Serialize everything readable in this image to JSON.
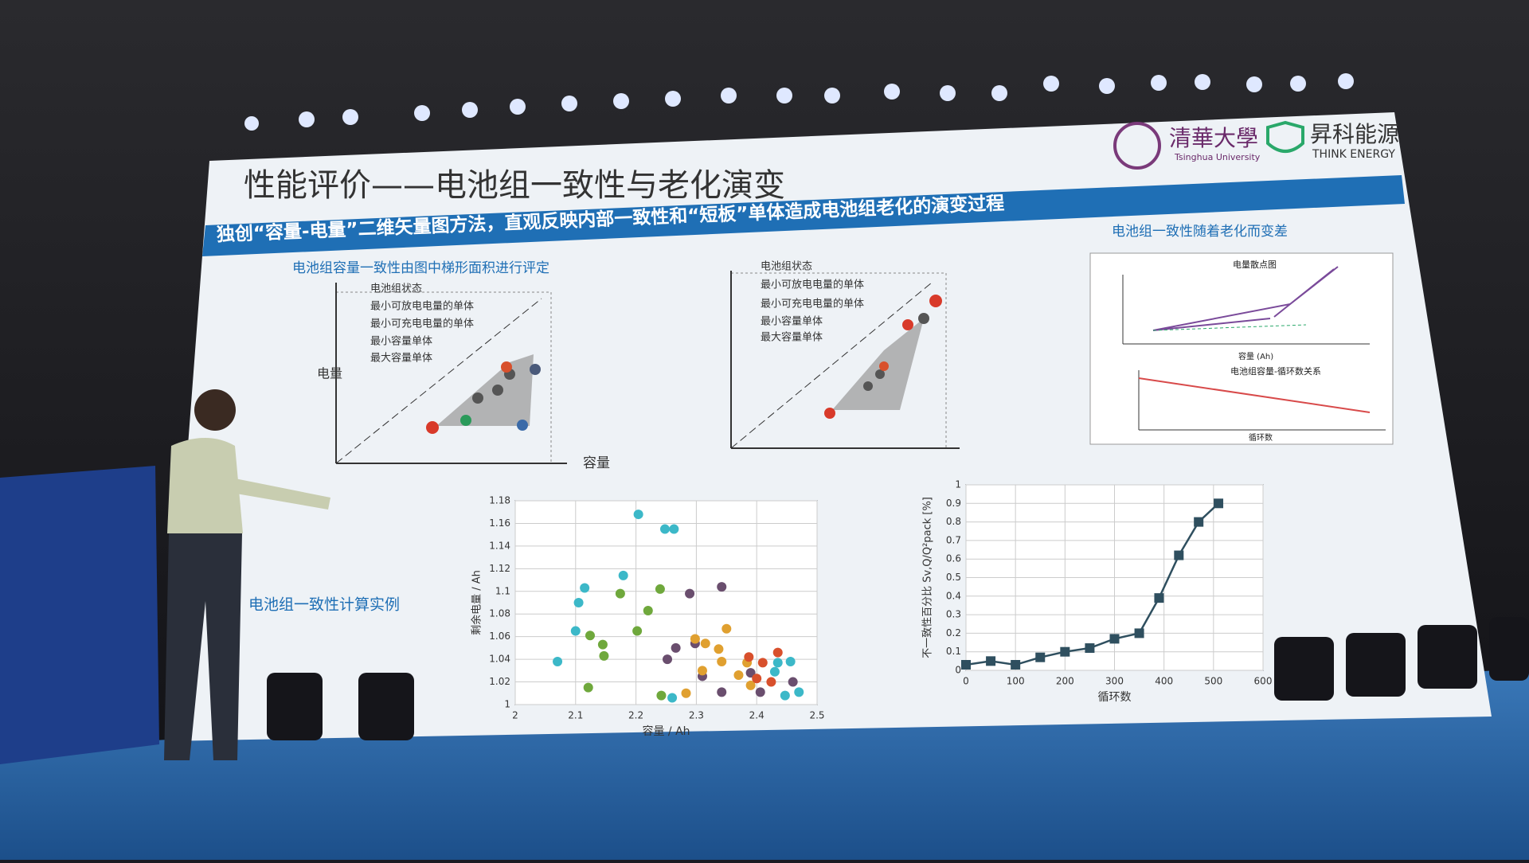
{
  "slide": {
    "title": "性能评价——电池组一致性与老化演变",
    "banner": "独创“容量-电量”二维矢量图方法，直观反映内部一致性和“短板”单体造成电池组老化的演变过程",
    "logo_university": "清華大學",
    "logo_university_en": "Tsinghua University",
    "logo_company": "昇科能源",
    "logo_company_en": "THINK ENERGY",
    "left_heading": "电池组容量一致性由图中梯形面积进行评定",
    "right_heading": "电池组一致性随着老化而变差",
    "example_heading": "电池组一致性计算实例",
    "diagram_left": {
      "y_label": "电量",
      "x_label": "容量",
      "legend": [
        "电池组状态",
        "最小可放电电量的单体",
        "最小可充电电量的单体",
        "最小容量单体",
        "最大容量单体"
      ]
    },
    "diagram_middle": {
      "legend": [
        "电池组状态",
        "最小可放电电量的单体",
        "最小可充电电量的单体",
        "最小容量单体",
        "最大容量单体"
      ]
    },
    "diagram_right": {
      "top_title": "电量散点图",
      "top_x_label": "容量 (Ah)",
      "bottom_title": "电池组容量-循环数关系",
      "bottom_x_label": "循环数"
    }
  },
  "chart_data": [
    {
      "type": "scatter",
      "x_label": "容量 / Ah",
      "y_label": "剩余电量 / Ah",
      "xlim": [
        2,
        2.5
      ],
      "xticks": [
        2,
        2.1,
        2.2,
        2.3,
        2.4,
        2.5
      ],
      "ylim": [
        1,
        1.18
      ],
      "yticks": [
        1,
        1.02,
        1.04,
        1.06,
        1.08,
        1.1,
        1.12,
        1.14,
        1.16,
        1.18
      ],
      "grid": true,
      "series": [
        {
          "color": "#3cb8c8",
          "x": [
            2.204,
            2.248,
            2.263,
            2.115,
            2.179,
            2.105,
            2.07,
            2.1,
            2.435,
            2.456,
            2.43,
            2.447,
            2.47,
            2.26
          ],
          "values": [
            1.168,
            1.155,
            1.155,
            1.103,
            1.114,
            1.09,
            1.038,
            1.065,
            1.037,
            1.038,
            1.029,
            1.008,
            1.011,
            1.006
          ]
        },
        {
          "color": "#6fa83c",
          "x": [
            2.174,
            2.24,
            2.22,
            2.145,
            2.124,
            2.147,
            2.202,
            2.121,
            2.242
          ],
          "values": [
            1.098,
            1.102,
            1.083,
            1.053,
            1.061,
            1.043,
            1.065,
            1.015,
            1.008
          ]
        },
        {
          "color": "#6a4e6e",
          "x": [
            2.289,
            2.342,
            2.266,
            2.252,
            2.298,
            2.31,
            2.342,
            2.406,
            2.39,
            2.46
          ],
          "values": [
            1.098,
            1.104,
            1.05,
            1.04,
            1.054,
            1.025,
            1.011,
            1.011,
            1.028,
            1.02
          ]
        },
        {
          "color": "#e0a030",
          "x": [
            2.298,
            2.315,
            2.35,
            2.337,
            2.31,
            2.37,
            2.342,
            2.39,
            2.384,
            2.283
          ],
          "values": [
            1.058,
            1.054,
            1.067,
            1.049,
            1.03,
            1.026,
            1.038,
            1.017,
            1.037,
            1.01
          ]
        },
        {
          "color": "#d8502c",
          "x": [
            2.387,
            2.41,
            2.435,
            2.4,
            2.424
          ],
          "values": [
            1.042,
            1.037,
            1.046,
            1.023,
            1.02
          ]
        }
      ]
    },
    {
      "type": "line",
      "x_label": "循环数",
      "y_label": "不一致性百分比 Sv,Q/Q²pack [%]",
      "xlim": [
        0,
        600
      ],
      "xticks": [
        0,
        100,
        200,
        300,
        400,
        500,
        600
      ],
      "ylim": [
        0,
        1
      ],
      "yticks": [
        0,
        0.1,
        0.2,
        0.3,
        0.4,
        0.5,
        0.6,
        0.7,
        0.8,
        0.9,
        1
      ],
      "grid": true,
      "series": [
        {
          "color": "#2f4f5f",
          "x": [
            0,
            50,
            100,
            150,
            200,
            250,
            300,
            350,
            390,
            430,
            470,
            510
          ],
          "values": [
            0.03,
            0.05,
            0.03,
            0.07,
            0.1,
            0.12,
            0.17,
            0.2,
            0.39,
            0.62,
            0.8,
            0.9
          ]
        }
      ]
    }
  ]
}
